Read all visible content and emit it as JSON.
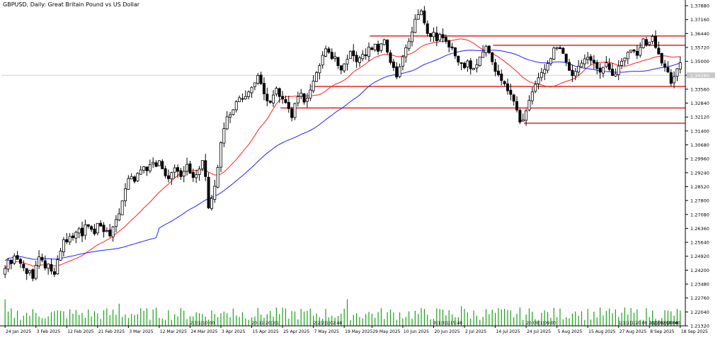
{
  "chart_data": {
    "type": "candlestick",
    "title": "GBPUSD, Daily:  Great Britain Pound vs US Dollar",
    "price_axis": {
      "ticks": [
        "1.37880",
        "1.37160",
        "1.36440",
        "1.35720",
        "1.35000",
        "1.34280",
        "1.33560",
        "1.32840",
        "1.32120",
        "1.31400",
        "1.30680",
        "1.29960",
        "1.29240",
        "1.28520",
        "1.27800",
        "1.27080",
        "1.26360",
        "1.25640",
        "1.24920",
        "1.24200",
        "1.23480",
        "1.22760",
        "1.22040",
        "1.21320"
      ],
      "range": [
        1.2132,
        1.3788
      ],
      "current_price": "1.34280"
    },
    "date_axis": {
      "labels": [
        "24 Jan 2025",
        "3 Feb 2025",
        "12 Feb 2025",
        "21 Feb 2025",
        "3 Mar 2025",
        "12 Mar 2025",
        "24 Mar 2025",
        "3 Apr 2025",
        "15 Apr 2025",
        "25 Apr 2025",
        "7 May 2025",
        "19 May 2025",
        "29 May 2025",
        "10 Jun 2025",
        "20 Jun 2025",
        "2 Jul 2025",
        "14 Jul 2025",
        "24 Jul 2025",
        "5 Aug 2025",
        "15 Aug 2025",
        "27 Aug 2025",
        "8 Sep 2025",
        "18 Sep 2025"
      ]
    },
    "series": [
      {
        "kind": "candles",
        "closes": [
          1.2429,
          1.2472,
          1.2455,
          1.2493,
          1.2476,
          1.2455,
          1.2432,
          1.2402,
          1.2418,
          1.2377,
          1.2445,
          1.2489,
          1.2472,
          1.2431,
          1.2452,
          1.2415,
          1.2398,
          1.2474,
          1.2519,
          1.2577,
          1.2566,
          1.2594,
          1.2588,
          1.2616,
          1.2634,
          1.2597,
          1.2655,
          1.2647,
          1.2631,
          1.2608,
          1.2662,
          1.2648,
          1.2619,
          1.2625,
          1.2597,
          1.2644,
          1.2682,
          1.2711,
          1.2778,
          1.2841,
          1.2894,
          1.2904,
          1.2879,
          1.2921,
          1.2938,
          1.2955,
          1.2934,
          1.2966,
          1.2978,
          1.2956,
          1.2986,
          1.2944,
          1.2908,
          1.2893,
          1.2925,
          1.2949,
          1.2931,
          1.2904,
          1.2931,
          1.2967,
          1.2921,
          1.2899,
          1.2914,
          1.2943,
          1.2987,
          1.2904,
          1.2742,
          1.2791,
          1.2854,
          1.2951,
          1.3079,
          1.3152,
          1.3213,
          1.3224,
          1.325,
          1.3291,
          1.3312,
          1.3305,
          1.3318,
          1.3342,
          1.3366,
          1.3389,
          1.3427,
          1.3385,
          1.3332,
          1.3296,
          1.3288,
          1.3326,
          1.3361,
          1.3318,
          1.3305,
          1.3286,
          1.3255,
          1.3209,
          1.3282,
          1.3318,
          1.3336,
          1.3289,
          1.331,
          1.3352,
          1.3398,
          1.3442,
          1.3478,
          1.3531,
          1.3565,
          1.3547,
          1.3514,
          1.3525,
          1.3478,
          1.3455,
          1.3487,
          1.3511,
          1.3551,
          1.3529,
          1.3498,
          1.3518,
          1.3536,
          1.3529,
          1.3574,
          1.3561,
          1.3589,
          1.3552,
          1.3591,
          1.3612,
          1.3548,
          1.3494,
          1.3468,
          1.3419,
          1.3472,
          1.3524,
          1.3571,
          1.3604,
          1.3652,
          1.3718,
          1.3742,
          1.3761,
          1.3699,
          1.3644,
          1.3628,
          1.3651,
          1.3606,
          1.364,
          1.3621,
          1.3604,
          1.3574,
          1.3569,
          1.3528,
          1.3496,
          1.3489,
          1.3467,
          1.3502,
          1.3461,
          1.3463,
          1.3483,
          1.3522,
          1.3549,
          1.3578,
          1.3545,
          1.3498,
          1.3448,
          1.3431,
          1.3401,
          1.3384,
          1.3348,
          1.3329,
          1.3294,
          1.3248,
          1.3186,
          1.3197,
          1.3244,
          1.3298,
          1.3342,
          1.3381,
          1.3415,
          1.3442,
          1.3458,
          1.3489,
          1.3514,
          1.3569,
          1.3571,
          1.3566,
          1.3541,
          1.3496,
          1.3453,
          1.3426,
          1.3448,
          1.3475,
          1.3491,
          1.3513,
          1.3521,
          1.3505,
          1.3492,
          1.3463,
          1.3444,
          1.3469,
          1.3493,
          1.3458,
          1.3427,
          1.3435,
          1.3476,
          1.3501,
          1.3517,
          1.3547,
          1.3558,
          1.3553,
          1.3531,
          1.3572,
          1.3616,
          1.3586,
          1.3599,
          1.3628,
          1.3572,
          1.3538,
          1.3491,
          1.3469,
          1.3445,
          1.3386,
          1.3421,
          1.3462,
          1.3493
        ]
      },
      {
        "kind": "ma",
        "name": "",
        "color": "#ff2020",
        "period": 20
      },
      {
        "kind": "ma",
        "name": "",
        "color": "#2020ff",
        "period": 50
      },
      {
        "kind": "volume",
        "color": "#1aa01a"
      }
    ],
    "levels": [
      {
        "price": 1.3631,
        "from": "29 May 2025",
        "to": "end",
        "color": "#e01010"
      },
      {
        "price": 1.3583,
        "from": "14 Jul 2025",
        "to": "end",
        "color": "#e01010"
      },
      {
        "price": 1.337,
        "from": "7 May 2025",
        "to": "end",
        "color": "#e01010"
      },
      {
        "price": 1.3259,
        "from": "25 Apr 2025",
        "to": "end",
        "color": "#e01010"
      },
      {
        "price": 1.318,
        "from": "24 Jul 2025",
        "to": "end",
        "color": "#e01010"
      }
    ],
    "volume_labels": [
      {
        "text": "2|3|1|10:00",
        "at": "24 Mar 2025"
      },
      {
        "text": "20:11:20|3|1",
        "at": "15 Apr 2025"
      },
      {
        "text": "2|2|2|1|02:48",
        "at": "7 May 2025"
      },
      {
        "text": "0|1|3|1|15:48",
        "at": "20 Jun 2025"
      },
      {
        "text": "20:00|1|09:00",
        "at": "24 Jul 2025"
      },
      {
        "text": "1|1|1|1|20:00",
        "at": "27 Aug 2025"
      },
      {
        "text": "1|2|09:|09:00",
        "at": "8 Sep 2025"
      },
      {
        "text": "20|1|12:|20:40",
        "at": "end"
      }
    ],
    "grid": false,
    "legend": "none"
  },
  "colors": {
    "background": "#ffffff",
    "axis": "#000000",
    "candle_up_fill": "#ffffff",
    "candle_down_fill": "#000000",
    "volume": "#1aa01a",
    "current_price_line": "#c0c0c0"
  }
}
